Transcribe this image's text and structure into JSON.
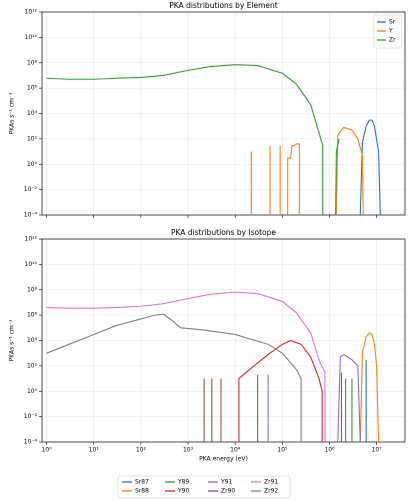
{
  "chart_data": [
    {
      "type": "line",
      "title": "PKA distributions by Element",
      "ylabel": "PKAs s⁻¹ cm⁻³",
      "xscale": "log",
      "yscale": "log",
      "grid": true,
      "legend": "upper right",
      "xlim": [
        0.8,
        40000000
      ],
      "ylim": [
        0.0001,
        1000000000000
      ],
      "xticks": [
        1,
        10,
        100,
        1000,
        10000,
        100000,
        1000000,
        10000000
      ],
      "yticks": [
        {
          "value": 0.0001,
          "label": "10⁻⁴"
        },
        {
          "value": 0.01,
          "label": "10⁻²"
        },
        {
          "value": 1,
          "label": "10⁰"
        },
        {
          "value": 100,
          "label": "10²"
        },
        {
          "value": 10000,
          "label": "10⁴"
        },
        {
          "value": 1000000,
          "label": "10⁶"
        },
        {
          "value": 100000000,
          "label": "10⁸"
        },
        {
          "value": 10000000000,
          "label": "10¹⁰"
        },
        {
          "value": 1000000000000,
          "label": "10¹²"
        }
      ],
      "series": [
        {
          "name": "Sr",
          "color": "#1f77b4",
          "x": [
            4500000,
            5000000,
            6000000,
            7000000,
            8000000,
            9000000,
            11000000,
            12000000
          ],
          "values": [
            0.0001,
            50,
            1000,
            3000,
            3000,
            1000,
            10,
            0.0001
          ]
        },
        {
          "name": "Y",
          "color": "#ff7f0e",
          "x": [
            22000,
            22000,
            null,
            55000,
            55000,
            null,
            90000,
            90000,
            null,
            130000,
            130000,
            150000,
            160000,
            180000,
            200000,
            230000,
            230000,
            null,
            1400000,
            1500000,
            2000000,
            3000000,
            4000000,
            5000000,
            5200000
          ],
          "values": [
            0.0001,
            10,
            null,
            0.0001,
            30,
            null,
            0.0001,
            30,
            null,
            0.0001,
            3,
            3,
            30,
            30,
            40,
            40,
            0.0001,
            null,
            0.0001,
            200,
            800,
            500,
            100,
            5,
            0.0001
          ]
        },
        {
          "name": "Zr",
          "color": "#2ca02c",
          "x": [
            1,
            3,
            10,
            30,
            100,
            300,
            1000,
            3000,
            10000,
            30000,
            100000,
            200000,
            400000,
            600000,
            720000,
            720000,
            null,
            1350000,
            1400000,
            1600000
          ],
          "values": [
            6000000,
            5000000,
            5000000,
            6000000,
            7000000,
            10000000,
            25000000,
            50000000,
            70000000,
            60000000,
            15000000,
            2000000,
            50000,
            300,
            30,
            0.0001,
            null,
            0.0001,
            10,
            100
          ]
        }
      ]
    },
    {
      "type": "line",
      "title": "PKA distributions by Isotope",
      "xlabel": "PKA energy (eV)",
      "ylabel": "PKAs s⁻¹ cm⁻³",
      "xscale": "log",
      "yscale": "log",
      "grid": true,
      "legend": "lower center",
      "legend_columns": 4,
      "xlim": [
        0.8,
        40000000
      ],
      "ylim": [
        0.0001,
        1000000000000
      ],
      "xticks": [
        {
          "value": 1,
          "label": "10⁰"
        },
        {
          "value": 10,
          "label": "10¹"
        },
        {
          "value": 100,
          "label": "10²"
        },
        {
          "value": 1000,
          "label": "10³"
        },
        {
          "value": 10000,
          "label": "10⁴"
        },
        {
          "value": 100000,
          "label": "10⁵"
        },
        {
          "value": 1000000,
          "label": "10⁶"
        },
        {
          "value": 10000000,
          "label": "10⁷"
        }
      ],
      "yticks": [
        {
          "value": 0.0001,
          "label": "10⁻⁴"
        },
        {
          "value": 0.01,
          "label": "10⁻²"
        },
        {
          "value": 1,
          "label": "10⁰"
        },
        {
          "value": 100,
          "label": "10²"
        },
        {
          "value": 10000,
          "label": "10⁴"
        },
        {
          "value": 1000000,
          "label": "10⁶"
        },
        {
          "value": 100000000,
          "label": "10⁸"
        },
        {
          "value": 10000000000,
          "label": "10¹⁰"
        },
        {
          "value": 1000000000000,
          "label": "10¹²"
        }
      ],
      "series": [
        {
          "name": "Sr87",
          "color": "#1f77b4",
          "x": [
            6000000,
            6000000
          ],
          "values": [
            0.0001,
            300
          ]
        },
        {
          "name": "Sr88",
          "color": "#ff7f0e",
          "x": [
            4500000,
            5000000,
            6000000,
            7000000,
            8000000,
            9000000,
            10000000,
            11000000
          ],
          "values": [
            0.0001,
            1000,
            20000,
            40000,
            30000,
            5000,
            100,
            0.0001
          ]
        },
        {
          "name": "Y89",
          "color": "#2ca02c",
          "x": [
            2200000,
            2200000,
            null,
            3000000,
            3000000
          ],
          "values": [
            0.0001,
            10,
            null,
            0.0001,
            10
          ]
        },
        {
          "name": "Y90",
          "color": "#d62728",
          "x": [
            12000,
            12000,
            20000,
            50000,
            100000,
            150000,
            250000,
            400000,
            600000,
            700000,
            700000
          ],
          "values": [
            0.0001,
            10,
            50,
            800,
            5000,
            10000,
            5000,
            500,
            10,
            1,
            0.0001
          ]
        },
        {
          "name": "Y91",
          "color": "#9467bd",
          "x": [
            50000,
            50000,
            null,
            1500000,
            1700000,
            2000000,
            3000000,
            4000000,
            4500000
          ],
          "values": [
            0.0001,
            20,
            null,
            0.0001,
            500,
            800,
            300,
            100,
            0.0001
          ]
        },
        {
          "name": "Zr90",
          "color": "#8c564b",
          "x": [
            2200,
            2200,
            null,
            3200,
            3200,
            null,
            5000,
            5000,
            null,
            30000,
            30000,
            null,
            1800000,
            1800000
          ],
          "values": [
            0.0001,
            10,
            null,
            0.0001,
            10,
            null,
            0.0001,
            10,
            null,
            0.0001,
            20,
            null,
            0.0001,
            30
          ]
        },
        {
          "name": "Zr91",
          "color": "#e377c2",
          "x": [
            1,
            3,
            10,
            30,
            100,
            300,
            1000,
            3000,
            10000,
            30000,
            100000,
            200000,
            400000,
            600000,
            800000,
            800000
          ],
          "values": [
            4000000,
            3500000,
            3500000,
            4000000,
            5000000,
            8000000,
            20000000,
            45000000,
            65000000,
            50000000,
            12000000,
            1500000,
            40000,
            300,
            30,
            0.0001
          ]
        },
        {
          "name": "Zr92",
          "color": "#7f7f7f",
          "x": [
            1,
            3,
            10,
            30,
            100,
            200,
            300,
            500,
            700,
            2000,
            10000,
            50000,
            100000,
            200000,
            250000,
            250000
          ],
          "values": [
            1000,
            5000,
            30000,
            150000,
            500000,
            1000000,
            1200000,
            300000,
            100000,
            70000,
            30000,
            5000,
            1000,
            50,
            10,
            0.0001
          ]
        }
      ]
    }
  ]
}
